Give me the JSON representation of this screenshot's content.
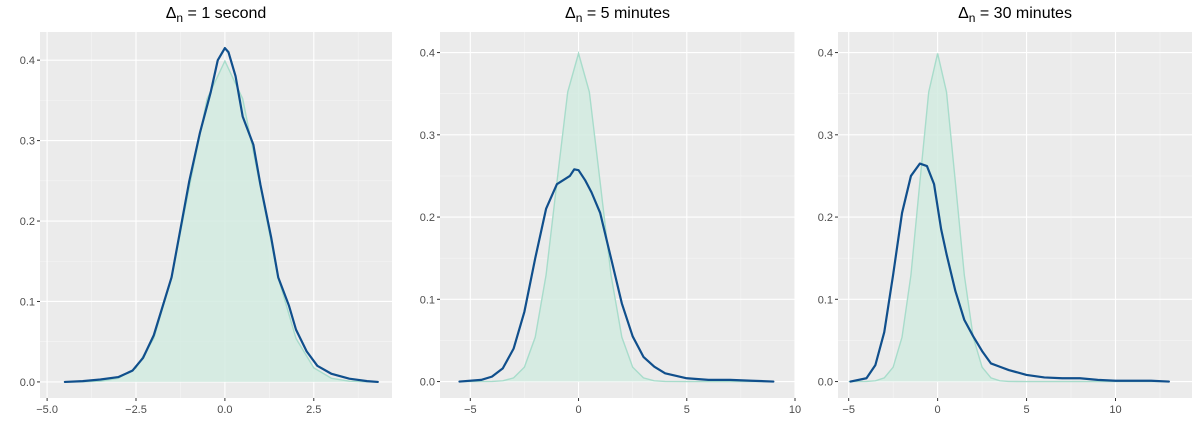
{
  "chart_data": [
    {
      "type": "area",
      "title_symbol": "Δ",
      "title_subscript": "n",
      "title_text": " = 1 second",
      "xlim": [
        -5.2,
        4.7
      ],
      "ylim": [
        -0.02,
        0.435
      ],
      "x_ticks": [
        -5.0,
        -2.5,
        0.0,
        2.5
      ],
      "x_tick_labels": [
        "−5.0",
        "−2.5",
        "0.0",
        "2.5"
      ],
      "y_ticks": [
        0.0,
        0.1,
        0.2,
        0.3,
        0.4
      ],
      "y_tick_labels": [
        "0.0",
        "0.1",
        "0.2",
        "0.3",
        "0.4"
      ],
      "grid": true,
      "series": [
        {
          "kind": "normal-density-reference",
          "color": "#a8dccb",
          "fill": "#d2ebe1",
          "x": [
            -4.5,
            -4.0,
            -3.5,
            -3.0,
            -2.5,
            -2.0,
            -1.5,
            -1.0,
            -0.5,
            0.0,
            0.5,
            1.0,
            1.5,
            2.0,
            2.5,
            3.0,
            3.5,
            4.0,
            4.3
          ],
          "values": [
            0.0,
            0.0001,
            0.0009,
            0.0044,
            0.0175,
            0.054,
            0.1295,
            0.242,
            0.352,
            0.399,
            0.352,
            0.242,
            0.1295,
            0.054,
            0.0175,
            0.0044,
            0.0009,
            0.0001,
            0.0
          ]
        },
        {
          "kind": "empirical-density",
          "color": "#104f8c",
          "x": [
            -4.5,
            -4.0,
            -3.5,
            -3.0,
            -2.6,
            -2.3,
            -2.0,
            -1.5,
            -1.0,
            -0.7,
            -0.4,
            -0.2,
            0.0,
            0.1,
            0.3,
            0.5,
            0.8,
            1.0,
            1.3,
            1.5,
            1.8,
            2.0,
            2.3,
            2.6,
            3.0,
            3.5,
            4.0,
            4.3
          ],
          "values": [
            0.0,
            0.001,
            0.003,
            0.006,
            0.014,
            0.03,
            0.058,
            0.13,
            0.25,
            0.31,
            0.36,
            0.4,
            0.415,
            0.41,
            0.38,
            0.33,
            0.295,
            0.245,
            0.18,
            0.13,
            0.095,
            0.065,
            0.038,
            0.02,
            0.01,
            0.004,
            0.001,
            0.0
          ]
        }
      ]
    },
    {
      "type": "area",
      "title_symbol": "Δ",
      "title_subscript": "n",
      "title_text": " = 5 minutes",
      "xlim": [
        -6.4,
        10.0
      ],
      "ylim": [
        -0.02,
        0.425
      ],
      "x_ticks": [
        -5,
        0,
        5,
        10
      ],
      "x_tick_labels": [
        "−5",
        "0",
        "5",
        "10"
      ],
      "y_ticks": [
        0.0,
        0.1,
        0.2,
        0.3,
        0.4
      ],
      "y_tick_labels": [
        "0.0",
        "0.1",
        "0.2",
        "0.3",
        "0.4"
      ],
      "grid": true,
      "series": [
        {
          "kind": "normal-density-reference",
          "color": "#a8dccb",
          "fill": "#d2ebe1",
          "x": [
            -5.5,
            -4.0,
            -3.5,
            -3.0,
            -2.5,
            -2.0,
            -1.5,
            -1.0,
            -0.5,
            0.0,
            0.5,
            1.0,
            1.5,
            2.0,
            2.5,
            3.0,
            3.5,
            4.0,
            5.0,
            9.0
          ],
          "values": [
            0.0,
            0.0001,
            0.0009,
            0.0044,
            0.0175,
            0.054,
            0.1295,
            0.242,
            0.352,
            0.399,
            0.352,
            0.242,
            0.1295,
            0.054,
            0.0175,
            0.0044,
            0.0009,
            0.0001,
            0.0,
            0.0
          ]
        },
        {
          "kind": "empirical-density",
          "color": "#104f8c",
          "x": [
            -5.5,
            -4.5,
            -4.0,
            -3.5,
            -3.0,
            -2.5,
            -2.0,
            -1.5,
            -1.0,
            -0.7,
            -0.4,
            -0.2,
            0.0,
            0.3,
            0.6,
            1.0,
            1.5,
            2.0,
            2.5,
            3.0,
            3.5,
            4.0,
            5.0,
            6.0,
            7.0,
            8.0,
            9.0
          ],
          "values": [
            0.0,
            0.002,
            0.006,
            0.016,
            0.04,
            0.085,
            0.15,
            0.21,
            0.24,
            0.245,
            0.25,
            0.258,
            0.257,
            0.245,
            0.23,
            0.205,
            0.15,
            0.095,
            0.055,
            0.03,
            0.018,
            0.01,
            0.004,
            0.002,
            0.002,
            0.001,
            0.0
          ]
        }
      ]
    },
    {
      "type": "area",
      "title_symbol": "Δ",
      "title_subscript": "n",
      "title_text": " = 30 minutes",
      "xlim": [
        -5.6,
        14.3
      ],
      "ylim": [
        -0.02,
        0.425
      ],
      "x_ticks": [
        -5,
        0,
        5,
        10
      ],
      "x_tick_labels": [
        "−5",
        "0",
        "5",
        "10"
      ],
      "y_ticks": [
        0.0,
        0.1,
        0.2,
        0.3,
        0.4
      ],
      "y_tick_labels": [
        "0.0",
        "0.1",
        "0.2",
        "0.3",
        "0.4"
      ],
      "grid": true,
      "series": [
        {
          "kind": "normal-density-reference",
          "color": "#a8dccb",
          "fill": "#d2ebe1",
          "x": [
            -5.0,
            -4.0,
            -3.5,
            -3.0,
            -2.5,
            -2.0,
            -1.5,
            -1.0,
            -0.5,
            0.0,
            0.5,
            1.0,
            1.5,
            2.0,
            2.5,
            3.0,
            3.5,
            4.0,
            5.0,
            13.0
          ],
          "values": [
            0.0,
            0.0001,
            0.0009,
            0.0044,
            0.0175,
            0.054,
            0.1295,
            0.242,
            0.352,
            0.399,
            0.352,
            0.242,
            0.1295,
            0.054,
            0.0175,
            0.0044,
            0.0009,
            0.0001,
            0.0,
            0.0
          ]
        },
        {
          "kind": "empirical-density",
          "color": "#104f8c",
          "x": [
            -4.9,
            -4.0,
            -3.5,
            -3.0,
            -2.5,
            -2.0,
            -1.5,
            -1.0,
            -0.6,
            -0.2,
            0.2,
            0.5,
            1.0,
            1.5,
            2.0,
            2.5,
            3.0,
            3.5,
            4.0,
            5.0,
            6.0,
            7.0,
            8.0,
            9.0,
            10.0,
            11.0,
            12.0,
            13.0
          ],
          "values": [
            0.0,
            0.004,
            0.02,
            0.06,
            0.13,
            0.205,
            0.25,
            0.265,
            0.262,
            0.24,
            0.185,
            0.155,
            0.11,
            0.075,
            0.055,
            0.037,
            0.022,
            0.018,
            0.014,
            0.008,
            0.005,
            0.004,
            0.004,
            0.002,
            0.001,
            0.001,
            0.001,
            0.0
          ]
        }
      ]
    }
  ]
}
